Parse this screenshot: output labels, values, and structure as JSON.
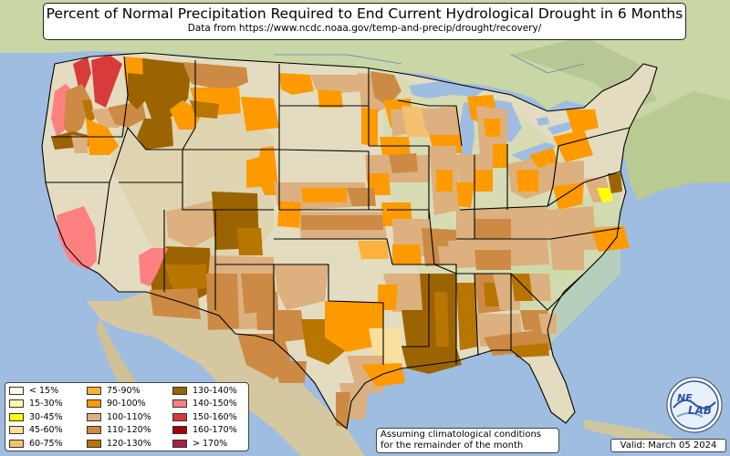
{
  "header": {
    "title": "Percent of Normal Precipitation Required to End Current Hydrological Drought in 6 Months",
    "subtitle": "Data from https://www.ncdc.noaa.gov/temp-and-precip/drought/recovery/"
  },
  "legend": {
    "items": [
      {
        "label": "< 15%",
        "color": "#fffde6"
      },
      {
        "label": "15-30%",
        "color": "#fff7b0"
      },
      {
        "label": "30-45%",
        "color": "#ffff00"
      },
      {
        "label": "45-60%",
        "color": "#f8df9e"
      },
      {
        "label": "60-75%",
        "color": "#f5c170"
      },
      {
        "label": "75-90%",
        "color": "#ffb13c"
      },
      {
        "label": "90-100%",
        "color": "#ff9a00"
      },
      {
        "label": "100-110%",
        "color": "#ddb07f"
      },
      {
        "label": "110-120%",
        "color": "#cc8a44"
      },
      {
        "label": "120-130%",
        "color": "#b87500"
      },
      {
        "label": "130-140%",
        "color": "#9c6400"
      },
      {
        "label": "140-150%",
        "color": "#ff8080"
      },
      {
        "label": "150-160%",
        "color": "#d83b3b"
      },
      {
        "label": "160-170%",
        "color": "#a00000"
      },
      {
        "label": "> 170%",
        "color": "#a8204a"
      }
    ]
  },
  "note": {
    "line1": "Assuming climatological conditions",
    "line2": "for the remainder of the month"
  },
  "valid": "Valid: March 05 2024",
  "logo": {
    "text_top": "NE",
    "text_bottom": "LAB",
    "icon": "nexlab-globe-icon"
  }
}
